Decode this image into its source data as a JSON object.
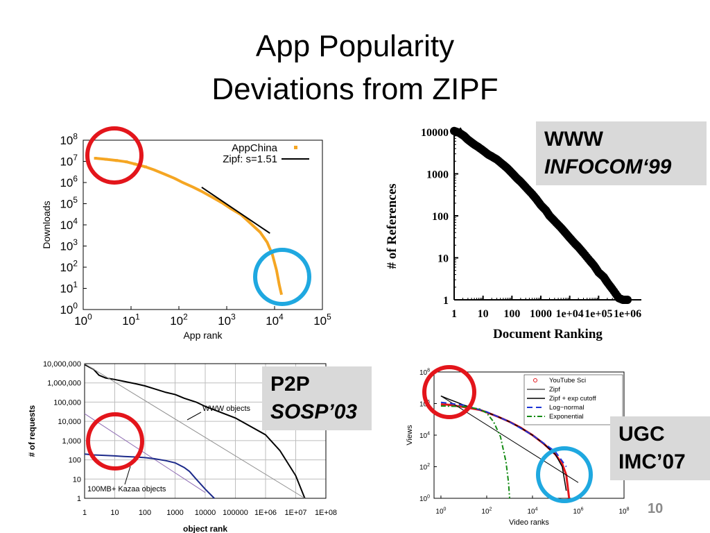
{
  "slide": {
    "title_line1": "App Popularity",
    "title_line2": "Deviations from ZIPF",
    "slide_number": "10",
    "labels": {
      "www": {
        "line1": "WWW",
        "line2": "INFOCOM‘99"
      },
      "p2p": {
        "line1": "P2P",
        "line2": "SOSP’03"
      },
      "ugc": {
        "line1": "UGC",
        "line2": "IMC’07"
      }
    },
    "colors": {
      "highlight_red": "#e3151b",
      "highlight_blue": "#1fa8e0",
      "label_bg": "#d9d9d9"
    }
  },
  "chart_data": [
    {
      "id": "appchina",
      "type": "line",
      "xlabel": "App rank",
      "ylabel": "Downloads",
      "xscale": "log",
      "yscale": "log",
      "xlim": [
        1,
        100000
      ],
      "ylim": [
        1,
        100000000
      ],
      "xtick_exps": [
        "0",
        "1",
        "2",
        "3",
        "4",
        "5"
      ],
      "ytick_exps": [
        "0",
        "1",
        "2",
        "3",
        "4",
        "5",
        "6",
        "7",
        "8"
      ],
      "legend_position": "top-right",
      "series": [
        {
          "name": "AppChina",
          "color": "#f5a623",
          "x": [
            1.8,
            3,
            5,
            8,
            12,
            20,
            30,
            50,
            80,
            120,
            200,
            300,
            500,
            800,
            1200,
            2000,
            3000,
            5000,
            7000,
            9000,
            11000,
            12500,
            13500,
            14000
          ],
          "y": [
            14000000,
            12500000,
            11000000,
            9500000,
            7500000,
            5500000,
            4000000,
            2500000,
            1600000,
            1000000,
            600000,
            380000,
            200000,
            110000,
            60000,
            30000,
            13000,
            4500,
            1500,
            400,
            70,
            15,
            7,
            5
          ]
        },
        {
          "name": "Zipf: s=1.51",
          "color": "#000000",
          "x": [
            300,
            8000
          ],
          "y": [
            600000,
            4000
          ]
        }
      ]
    },
    {
      "id": "www",
      "type": "scatter",
      "xlabel": "Document Ranking",
      "ylabel": "# of References",
      "xscale": "log",
      "yscale": "log",
      "xlim": [
        1,
        1000000
      ],
      "ylim": [
        1,
        10000
      ],
      "xtick_labels": [
        "1",
        "10",
        "100",
        "1000",
        "1e+04",
        "1e+05",
        "1e+06"
      ],
      "ytick_labels": [
        "1",
        "10",
        "100",
        "1000",
        "10000"
      ],
      "series": [
        {
          "name": "",
          "color": "#000000",
          "x": [
            1,
            1.5,
            2.2,
            3,
            4,
            5,
            7,
            10,
            15,
            20,
            30,
            50,
            70,
            100,
            150,
            200,
            300,
            500,
            700,
            1000,
            1500,
            2000,
            3000,
            5000,
            7000,
            10000,
            15000,
            20000,
            30000,
            50000,
            70000,
            100000,
            150000,
            200000,
            300000,
            500000,
            700000,
            1000000
          ],
          "y": [
            10500,
            9500,
            8000,
            6500,
            5600,
            5000,
            4300,
            3600,
            2900,
            2600,
            2200,
            1650,
            1350,
            1050,
            780,
            650,
            480,
            330,
            250,
            180,
            135,
            100,
            75,
            52,
            40,
            30,
            22,
            18,
            13,
            8.5,
            6.5,
            4.5,
            3.5,
            2.6,
            1.8,
            1.1,
            1,
            1
          ]
        },
        {
          "name": "",
          "color": "#000000",
          "dashed": true,
          "x": [
            1.6,
            3.5
          ],
          "y": [
            12500,
            5500
          ]
        }
      ]
    },
    {
      "id": "p2p",
      "type": "line",
      "xlabel": "object rank",
      "ylabel": "# of requests",
      "xscale": "log",
      "yscale": "log",
      "xlim": [
        1,
        100000000
      ],
      "ylim": [
        1,
        10000000
      ],
      "xtick_labels": [
        "1",
        "10",
        "100",
        "1000",
        "10000",
        "100000",
        "1E+06",
        "1E+07",
        "1E+08"
      ],
      "ytick_labels": [
        "1",
        "10",
        "100",
        "1,000",
        "10,000",
        "100,000",
        "1,000,000",
        "10,000,000"
      ],
      "annotations": [
        "WWW objects",
        "100MB+ Kazaa objects"
      ],
      "series": [
        {
          "name": "WWW objects",
          "color": "#000000",
          "x": [
            1,
            2,
            3,
            5,
            10,
            20,
            50,
            100,
            200,
            500,
            1000,
            2000,
            5000,
            10000,
            100000,
            1000000,
            3000000,
            10000000,
            20000000
          ],
          "y": [
            9000000,
            5000000,
            2500000,
            1800000,
            1500000,
            1200000,
            900000,
            700000,
            500000,
            320000,
            250000,
            160000,
            100000,
            60000,
            15000,
            2000,
            300,
            15,
            1
          ]
        },
        {
          "name": "",
          "color": "#909090",
          "x": [
            1,
            20000000
          ],
          "y": [
            10000000,
            1
          ]
        },
        {
          "name": "",
          "color": "#8e6cb3",
          "x": [
            1,
            10000
          ],
          "y": [
            25000,
            2
          ]
        },
        {
          "name": "100MB+ Kazaa objects",
          "color": "#1c2a8a",
          "x": [
            1,
            2,
            5,
            10,
            20,
            50,
            100,
            200,
            500,
            1000,
            2000,
            3000,
            5000,
            10000,
            20000
          ],
          "y": [
            200,
            180,
            170,
            160,
            150,
            140,
            130,
            115,
            90,
            70,
            40,
            25,
            10,
            3,
            1
          ]
        }
      ]
    },
    {
      "id": "ugc",
      "type": "line",
      "xlabel": "Video ranks",
      "ylabel": "Views",
      "xscale": "log",
      "yscale": "log",
      "xlim": [
        0.5,
        100000000
      ],
      "ylim": [
        1,
        100000000
      ],
      "xtick_exps": [
        "0",
        "2",
        "4",
        "6",
        "8"
      ],
      "ytick_exps": [
        "0",
        "2",
        "4",
        "6",
        "8"
      ],
      "legend_position": "top-right",
      "series": [
        {
          "name": "YouTube Sci",
          "color": "#e3151b",
          "x": [
            1,
            2,
            5,
            10,
            20,
            50,
            100,
            300,
            1000,
            3000,
            10000,
            30000,
            100000,
            200000,
            300000,
            350000,
            400000
          ],
          "y": [
            900000,
            850000,
            700000,
            600000,
            500000,
            400000,
            280000,
            150000,
            70000,
            30000,
            10000,
            3000,
            600,
            150,
            30,
            5,
            1
          ]
        },
        {
          "name": "Zipf",
          "color": "#000000",
          "x": [
            1,
            1000000
          ],
          "y": [
            3000000,
            10
          ]
        },
        {
          "name": "Zipf + exp cutoff",
          "color": "#000000",
          "x": [
            1,
            2,
            5,
            10,
            30,
            100,
            300,
            1000,
            3000,
            10000,
            30000,
            100000,
            200000,
            300000
          ],
          "y": [
            3000000,
            2000000,
            1200000,
            800000,
            500000,
            280000,
            150000,
            70000,
            30000,
            10000,
            3000,
            600,
            100,
            3
          ]
        },
        {
          "name": "Log−normal",
          "color": "#1a33d6",
          "x": [
            1,
            10,
            100,
            1000,
            10000,
            100000,
            300000
          ],
          "y": [
            1200000,
            800000,
            300000,
            70000,
            10000,
            900,
            100
          ]
        },
        {
          "name": "Exponential",
          "color": "#138a13",
          "x": [
            1,
            10,
            50,
            100,
            200,
            400,
            700,
            900,
            1000
          ],
          "y": [
            700000,
            650000,
            450000,
            250000,
            70000,
            8000,
            200,
            10,
            1
          ]
        }
      ]
    }
  ]
}
